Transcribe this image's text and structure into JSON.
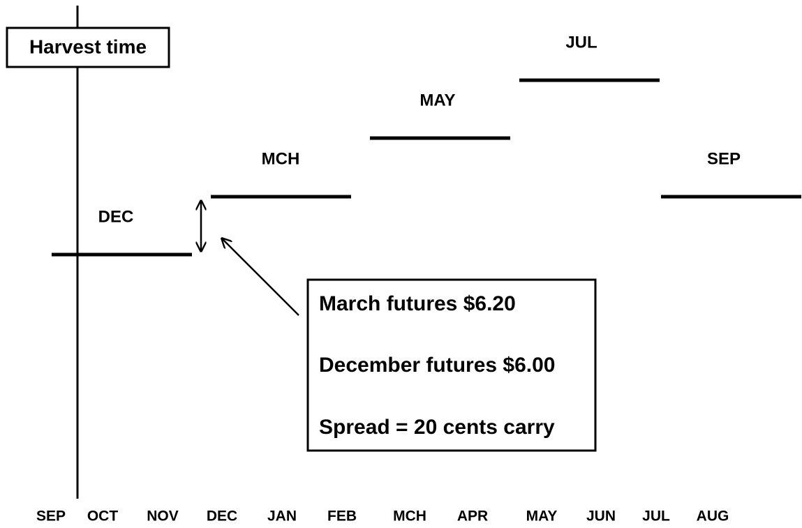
{
  "harvest_label": "Harvest time",
  "contracts": [
    {
      "label": "DEC"
    },
    {
      "label": "MCH"
    },
    {
      "label": "MAY"
    },
    {
      "label": "JUL"
    },
    {
      "label": "SEP"
    }
  ],
  "callout": {
    "lines": [
      "March futures $6.20",
      "December futures $6.00",
      "Spread = 20 cents carry"
    ]
  },
  "months": [
    "SEP",
    "OCT",
    "NOV",
    "DEC",
    "JAN",
    "FEB",
    "MCH",
    "APR",
    "MAY",
    "JUN",
    "JUL",
    "AUG"
  ]
}
